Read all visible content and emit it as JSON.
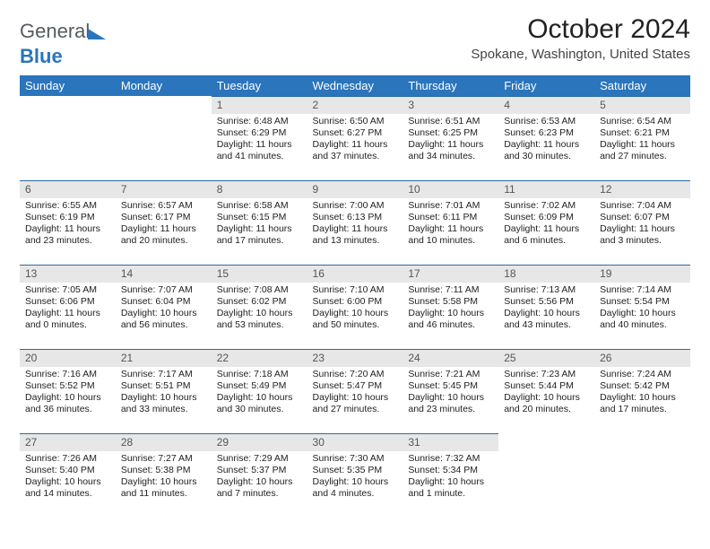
{
  "brand": {
    "name_part1": "General",
    "name_part2": "Blue",
    "triangle_color": "#2a75bb",
    "text_color": "#555b61",
    "blue_color": "#2a75bb"
  },
  "header": {
    "title": "October 2024",
    "location": "Spokane, Washington, United States"
  },
  "theme": {
    "header_bg": "#2a75bb",
    "header_fg": "#ffffff",
    "daynum_bg": "#e7e7e7",
    "cell_border_top": "#2a6aa3",
    "body_text": "#222222"
  },
  "weekdays": [
    "Sunday",
    "Monday",
    "Tuesday",
    "Wednesday",
    "Thursday",
    "Friday",
    "Saturday"
  ],
  "weeks": [
    [
      {
        "empty": true
      },
      {
        "empty": true
      },
      {
        "day": "1",
        "sunrise": "Sunrise: 6:48 AM",
        "sunset": "Sunset: 6:29 PM",
        "daylight": "Daylight: 11 hours and 41 minutes."
      },
      {
        "day": "2",
        "sunrise": "Sunrise: 6:50 AM",
        "sunset": "Sunset: 6:27 PM",
        "daylight": "Daylight: 11 hours and 37 minutes."
      },
      {
        "day": "3",
        "sunrise": "Sunrise: 6:51 AM",
        "sunset": "Sunset: 6:25 PM",
        "daylight": "Daylight: 11 hours and 34 minutes."
      },
      {
        "day": "4",
        "sunrise": "Sunrise: 6:53 AM",
        "sunset": "Sunset: 6:23 PM",
        "daylight": "Daylight: 11 hours and 30 minutes."
      },
      {
        "day": "5",
        "sunrise": "Sunrise: 6:54 AM",
        "sunset": "Sunset: 6:21 PM",
        "daylight": "Daylight: 11 hours and 27 minutes."
      }
    ],
    [
      {
        "day": "6",
        "sunrise": "Sunrise: 6:55 AM",
        "sunset": "Sunset: 6:19 PM",
        "daylight": "Daylight: 11 hours and 23 minutes."
      },
      {
        "day": "7",
        "sunrise": "Sunrise: 6:57 AM",
        "sunset": "Sunset: 6:17 PM",
        "daylight": "Daylight: 11 hours and 20 minutes."
      },
      {
        "day": "8",
        "sunrise": "Sunrise: 6:58 AM",
        "sunset": "Sunset: 6:15 PM",
        "daylight": "Daylight: 11 hours and 17 minutes."
      },
      {
        "day": "9",
        "sunrise": "Sunrise: 7:00 AM",
        "sunset": "Sunset: 6:13 PM",
        "daylight": "Daylight: 11 hours and 13 minutes."
      },
      {
        "day": "10",
        "sunrise": "Sunrise: 7:01 AM",
        "sunset": "Sunset: 6:11 PM",
        "daylight": "Daylight: 11 hours and 10 minutes."
      },
      {
        "day": "11",
        "sunrise": "Sunrise: 7:02 AM",
        "sunset": "Sunset: 6:09 PM",
        "daylight": "Daylight: 11 hours and 6 minutes."
      },
      {
        "day": "12",
        "sunrise": "Sunrise: 7:04 AM",
        "sunset": "Sunset: 6:07 PM",
        "daylight": "Daylight: 11 hours and 3 minutes."
      }
    ],
    [
      {
        "day": "13",
        "sunrise": "Sunrise: 7:05 AM",
        "sunset": "Sunset: 6:06 PM",
        "daylight": "Daylight: 11 hours and 0 minutes."
      },
      {
        "day": "14",
        "sunrise": "Sunrise: 7:07 AM",
        "sunset": "Sunset: 6:04 PM",
        "daylight": "Daylight: 10 hours and 56 minutes."
      },
      {
        "day": "15",
        "sunrise": "Sunrise: 7:08 AM",
        "sunset": "Sunset: 6:02 PM",
        "daylight": "Daylight: 10 hours and 53 minutes."
      },
      {
        "day": "16",
        "sunrise": "Sunrise: 7:10 AM",
        "sunset": "Sunset: 6:00 PM",
        "daylight": "Daylight: 10 hours and 50 minutes."
      },
      {
        "day": "17",
        "sunrise": "Sunrise: 7:11 AM",
        "sunset": "Sunset: 5:58 PM",
        "daylight": "Daylight: 10 hours and 46 minutes."
      },
      {
        "day": "18",
        "sunrise": "Sunrise: 7:13 AM",
        "sunset": "Sunset: 5:56 PM",
        "daylight": "Daylight: 10 hours and 43 minutes."
      },
      {
        "day": "19",
        "sunrise": "Sunrise: 7:14 AM",
        "sunset": "Sunset: 5:54 PM",
        "daylight": "Daylight: 10 hours and 40 minutes."
      }
    ],
    [
      {
        "day": "20",
        "sunrise": "Sunrise: 7:16 AM",
        "sunset": "Sunset: 5:52 PM",
        "daylight": "Daylight: 10 hours and 36 minutes."
      },
      {
        "day": "21",
        "sunrise": "Sunrise: 7:17 AM",
        "sunset": "Sunset: 5:51 PM",
        "daylight": "Daylight: 10 hours and 33 minutes."
      },
      {
        "day": "22",
        "sunrise": "Sunrise: 7:18 AM",
        "sunset": "Sunset: 5:49 PM",
        "daylight": "Daylight: 10 hours and 30 minutes."
      },
      {
        "day": "23",
        "sunrise": "Sunrise: 7:20 AM",
        "sunset": "Sunset: 5:47 PM",
        "daylight": "Daylight: 10 hours and 27 minutes."
      },
      {
        "day": "24",
        "sunrise": "Sunrise: 7:21 AM",
        "sunset": "Sunset: 5:45 PM",
        "daylight": "Daylight: 10 hours and 23 minutes."
      },
      {
        "day": "25",
        "sunrise": "Sunrise: 7:23 AM",
        "sunset": "Sunset: 5:44 PM",
        "daylight": "Daylight: 10 hours and 20 minutes."
      },
      {
        "day": "26",
        "sunrise": "Sunrise: 7:24 AM",
        "sunset": "Sunset: 5:42 PM",
        "daylight": "Daylight: 10 hours and 17 minutes."
      }
    ],
    [
      {
        "day": "27",
        "sunrise": "Sunrise: 7:26 AM",
        "sunset": "Sunset: 5:40 PM",
        "daylight": "Daylight: 10 hours and 14 minutes."
      },
      {
        "day": "28",
        "sunrise": "Sunrise: 7:27 AM",
        "sunset": "Sunset: 5:38 PM",
        "daylight": "Daylight: 10 hours and 11 minutes."
      },
      {
        "day": "29",
        "sunrise": "Sunrise: 7:29 AM",
        "sunset": "Sunset: 5:37 PM",
        "daylight": "Daylight: 10 hours and 7 minutes."
      },
      {
        "day": "30",
        "sunrise": "Sunrise: 7:30 AM",
        "sunset": "Sunset: 5:35 PM",
        "daylight": "Daylight: 10 hours and 4 minutes."
      },
      {
        "day": "31",
        "sunrise": "Sunrise: 7:32 AM",
        "sunset": "Sunset: 5:34 PM",
        "daylight": "Daylight: 10 hours and 1 minute."
      },
      {
        "empty": true
      },
      {
        "empty": true
      }
    ]
  ]
}
